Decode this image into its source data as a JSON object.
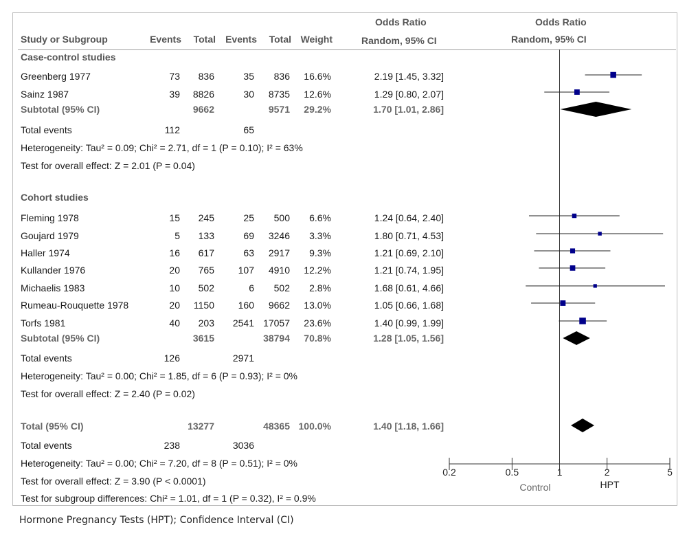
{
  "header": {
    "or_title_table": "Odds Ratio",
    "or_sub_table": "Random, 95% CI",
    "or_title_plot": "Odds Ratio",
    "or_sub_plot": "Random, 95% CI",
    "col_study": "Study or Subgroup",
    "col_events1": "Events",
    "col_total1": "Total",
    "col_events2": "Events",
    "col_total2": "Total",
    "col_weight": "Weight"
  },
  "groups": [
    {
      "title": "Case-control studies",
      "subtotal": {
        "label": "Subtotal (95% CI)",
        "total1": "9662",
        "total2": "9571",
        "weight": "29.2%",
        "ci": "1.70 [1.01, 2.86]"
      },
      "total_events": {
        "label": "Total events",
        "e1": "112",
        "e2": "65"
      },
      "heterogeneity": "Heterogeneity: Tau² = 0.09; Chi² = 2.71, df = 1 (P = 0.10); I² = 63%",
      "overall": "Test for overall effect: Z = 2.01 (P = 0.04)"
    },
    {
      "title": "Cohort studies",
      "subtotal": {
        "label": "Subtotal (95% CI)",
        "total1": "3615",
        "total2": "38794",
        "weight": "70.8%",
        "ci": "1.28 [1.05, 1.56]"
      },
      "total_events": {
        "label": "Total events",
        "e1": "126",
        "e2": "2971"
      },
      "heterogeneity": "Heterogeneity: Tau² = 0.00; Chi² = 1.85, df = 6 (P = 0.93); I² = 0%",
      "overall": "Test for overall effect: Z = 2.40 (P = 0.02)"
    }
  ],
  "studies": [
    {
      "name": "Greenberg 1977",
      "e1": "73",
      "t1": "836",
      "e2": "35",
      "t2": "836",
      "weight": "16.6%",
      "ci": "2.19 [1.45, 3.32]"
    },
    {
      "name": "Sainz 1987",
      "e1": "39",
      "t1": "8826",
      "e2": "30",
      "t2": "8735",
      "weight": "12.6%",
      "ci": "1.29 [0.80, 2.07]"
    },
    {
      "name": "Fleming 1978",
      "e1": "15",
      "t1": "245",
      "e2": "25",
      "t2": "500",
      "weight": "6.6%",
      "ci": "1.24 [0.64, 2.40]"
    },
    {
      "name": "Goujard 1979",
      "e1": "5",
      "t1": "133",
      "e2": "69",
      "t2": "3246",
      "weight": "3.3%",
      "ci": "1.80 [0.71, 4.53]"
    },
    {
      "name": "Haller 1974",
      "e1": "16",
      "t1": "617",
      "e2": "63",
      "t2": "2917",
      "weight": "9.3%",
      "ci": "1.21 [0.69, 2.10]"
    },
    {
      "name": "Kullander 1976",
      "e1": "20",
      "t1": "765",
      "e2": "107",
      "t2": "4910",
      "weight": "12.2%",
      "ci": "1.21 [0.74, 1.95]"
    },
    {
      "name": "Michaelis 1983",
      "e1": "10",
      "t1": "502",
      "e2": "6",
      "t2": "502",
      "weight": "2.8%",
      "ci": "1.68 [0.61, 4.66]"
    },
    {
      "name": "Rumeau-Rouquette 1978",
      "e1": "20",
      "t1": "1150",
      "e2": "160",
      "t2": "9662",
      "weight": "13.0%",
      "ci": "1.05 [0.66, 1.68]"
    },
    {
      "name": "Torfs 1981",
      "e1": "40",
      "t1": "203",
      "e2": "2541",
      "t2": "17057",
      "weight": "23.6%",
      "ci": "1.40 [0.99, 1.99]"
    }
  ],
  "total": {
    "label": "Total (95% CI)",
    "total1": "13277",
    "total2": "48365",
    "weight": "100.0%",
    "ci": "1.40 [1.18, 1.66]",
    "events_label": "Total events",
    "e1": "238",
    "e2": "3036",
    "heterogeneity": "Heterogeneity: Tau² = 0.00; Chi² = 7.20, df = 8 (P = 0.51); I² = 0%",
    "overall": "Test for overall effect: Z = 3.90 (P < 0.0001)",
    "subgroup": "Test for subgroup differences: Chi² = 1.01, df = 1 (P = 0.32), I² = 0.9%"
  },
  "caption": "Hormone Pregnancy Tests (HPT); Confidence Interval (CI)",
  "chart_data": {
    "type": "forest",
    "scale": "log",
    "xlim": [
      0.2,
      5
    ],
    "ticks": [
      0.2,
      0.5,
      1,
      2,
      5
    ],
    "tick_labels": [
      "0.2",
      "0.5",
      "1",
      "2",
      "5"
    ],
    "favours_left": "Control",
    "favours_right": "HPT",
    "reference_line": 1,
    "square_color": "#00008b",
    "diamond_color": "#000000",
    "studies": [
      {
        "name": "Greenberg 1977",
        "or": 2.19,
        "lo": 1.45,
        "hi": 3.32,
        "weight": 16.6
      },
      {
        "name": "Sainz 1987",
        "or": 1.29,
        "lo": 0.8,
        "hi": 2.07,
        "weight": 12.6
      },
      {
        "name": "Fleming 1978",
        "or": 1.24,
        "lo": 0.64,
        "hi": 2.4,
        "weight": 6.6
      },
      {
        "name": "Goujard 1979",
        "or": 1.8,
        "lo": 0.71,
        "hi": 4.53,
        "weight": 3.3
      },
      {
        "name": "Haller 1974",
        "or": 1.21,
        "lo": 0.69,
        "hi": 2.1,
        "weight": 9.3
      },
      {
        "name": "Kullander 1976",
        "or": 1.21,
        "lo": 0.74,
        "hi": 1.95,
        "weight": 12.2
      },
      {
        "name": "Michaelis 1983",
        "or": 1.68,
        "lo": 0.61,
        "hi": 4.66,
        "weight": 2.8
      },
      {
        "name": "Rumeau-Rouquette 1978",
        "or": 1.05,
        "lo": 0.66,
        "hi": 1.68,
        "weight": 13.0
      },
      {
        "name": "Torfs 1981",
        "or": 1.4,
        "lo": 0.99,
        "hi": 1.99,
        "weight": 23.6
      }
    ],
    "pooled": [
      {
        "name": "Subtotal (95% CI) Case-control",
        "or": 1.7,
        "lo": 1.01,
        "hi": 2.86
      },
      {
        "name": "Subtotal (95% CI) Cohort",
        "or": 1.28,
        "lo": 1.05,
        "hi": 1.56
      },
      {
        "name": "Total (95% CI)",
        "or": 1.4,
        "lo": 1.18,
        "hi": 1.66
      }
    ]
  }
}
